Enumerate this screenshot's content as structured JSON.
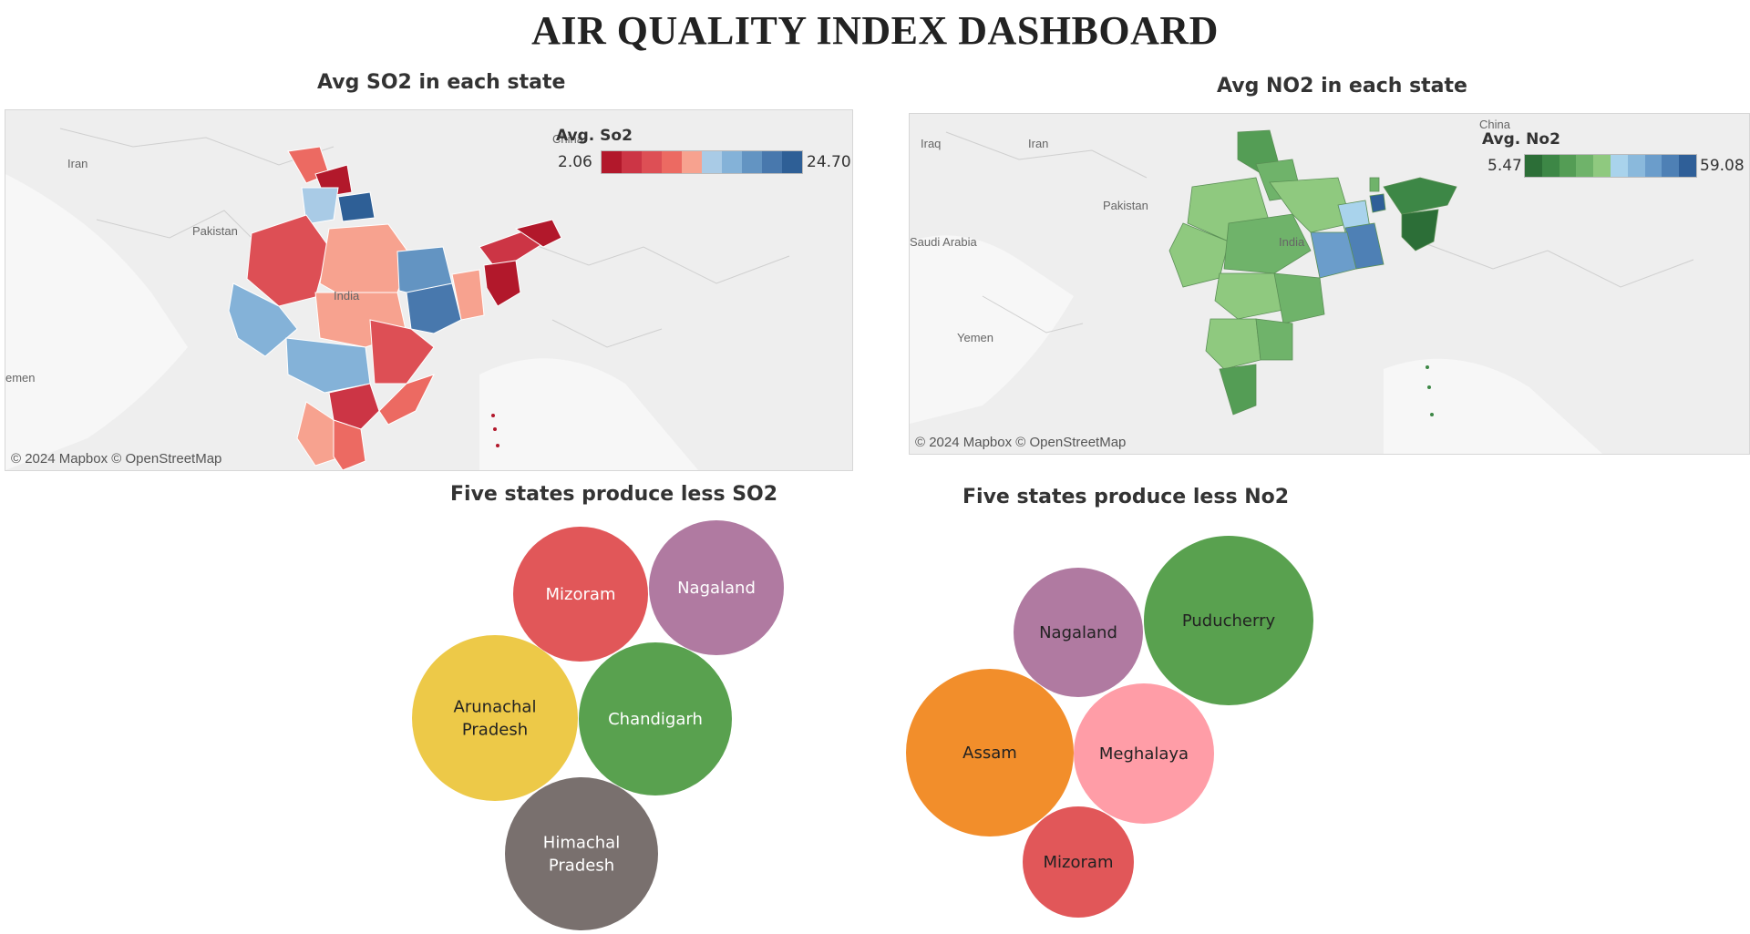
{
  "dashboard": {
    "title": "AIR QUALITY INDEX DASHBOARD"
  },
  "so2_map": {
    "title": "Avg SO2 in each state",
    "legend": {
      "title": "Avg. So2",
      "min": "2.06",
      "max": "24.70",
      "colors": [
        "#b2182b",
        "#cc3545",
        "#dd4f55",
        "#ec6a62",
        "#f7a28f",
        "#a9cbe6",
        "#84b2d8",
        "#6394c2",
        "#4878ad",
        "#2e5f96"
      ]
    },
    "places": [
      "Iran",
      "Pakistan",
      "China",
      "India",
      "emen"
    ],
    "attribution": "© 2024 Mapbox © OpenStreetMap"
  },
  "no2_map": {
    "title": "Avg NO2 in each state",
    "legend": {
      "title": "Avg. No2",
      "min": "5.47",
      "max": "59.08",
      "colors": [
        "#2c6e37",
        "#3d8746",
        "#549d55",
        "#6fb36a",
        "#8fc97f",
        "#a9d3ec",
        "#8ab9dc",
        "#6b9dcb",
        "#4e80b5",
        "#2f5f98"
      ]
    },
    "places": [
      "Iraq",
      "Iran",
      "China",
      "Pakistan",
      "Saudi Arabia",
      "India",
      "Yemen"
    ],
    "attribution": "© 2024 Mapbox © OpenStreetMap"
  },
  "chart_data": [
    {
      "type": "bubble",
      "title": "Five states produce less SO2",
      "series": [
        {
          "name": "Mizoram",
          "color": "#e15759"
        },
        {
          "name": "Nagaland",
          "color": "#b07aa1"
        },
        {
          "name": "Arunachal Pradesh",
          "color": "#edc948"
        },
        {
          "name": "Chandigarh",
          "color": "#59a14f"
        },
        {
          "name": "Himachal Pradesh",
          "color": "#79706e"
        }
      ]
    },
    {
      "type": "bubble",
      "title": "Five states produce less No2",
      "series": [
        {
          "name": "Nagaland",
          "color": "#b07aa1"
        },
        {
          "name": "Puducherry",
          "color": "#59a14f"
        },
        {
          "name": "Assam",
          "color": "#f28e2b"
        },
        {
          "name": "Meghalaya",
          "color": "#ff9da7"
        },
        {
          "name": "Mizoram",
          "color": "#e15759"
        }
      ]
    }
  ]
}
